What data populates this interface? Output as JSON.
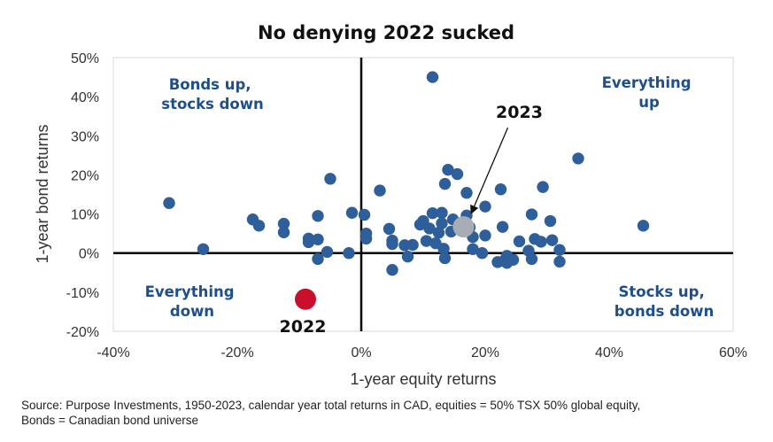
{
  "chart_data": {
    "type": "scatter",
    "title": "No denying 2022 sucked",
    "xlabel": "1-year equity returns",
    "ylabel": "1-year bond returns",
    "xlim": [
      -40,
      60
    ],
    "ylim": [
      -20,
      50
    ],
    "xticks": [
      "-40%",
      "-20%",
      "0%",
      "20%",
      "40%",
      "60%"
    ],
    "yticks": [
      "-20%",
      "-10%",
      "0%",
      "10%",
      "20%",
      "30%",
      "40%",
      "50%"
    ],
    "quadrant_labels": {
      "top_left": [
        "Bonds up,",
        "stocks down"
      ],
      "top_right": [
        "Everything",
        "up"
      ],
      "bottom_left": [
        "Everything",
        "down"
      ],
      "bottom_right": [
        "Stocks up,",
        "bonds down"
      ]
    },
    "colors": {
      "points": "#2e5f9a",
      "highlight_2022": "#c8102e",
      "highlight_2023": "#a6adb4",
      "quadrant_text": "#1f4e8c"
    },
    "series": [
      {
        "points": [
          [
            -31,
            12.8
          ],
          [
            -25.5,
            1
          ],
          [
            -17.5,
            8.6
          ],
          [
            -16.5,
            7
          ],
          [
            -12.5,
            7.5
          ],
          [
            -12.5,
            5.3
          ],
          [
            -8.5,
            3.7
          ],
          [
            -8.5,
            2.8
          ],
          [
            -7,
            3.5
          ],
          [
            -7,
            9.5
          ],
          [
            -7,
            -1.5
          ],
          [
            -5.5,
            0.3
          ],
          [
            -5,
            19
          ],
          [
            -2,
            0
          ],
          [
            -1.5,
            10.3
          ],
          [
            0.5,
            9.8
          ],
          [
            0.8,
            5
          ],
          [
            0.8,
            3.7
          ],
          [
            3,
            16
          ],
          [
            4.5,
            6.2
          ],
          [
            5,
            3.2
          ],
          [
            5,
            2.3
          ],
          [
            5,
            -4.3
          ],
          [
            7,
            2
          ],
          [
            7.5,
            -0.9
          ],
          [
            8.3,
            2.1
          ],
          [
            9.5,
            7.3
          ],
          [
            10,
            8.2
          ],
          [
            10.5,
            3.1
          ],
          [
            11,
            6.3
          ],
          [
            11.5,
            45
          ],
          [
            11.5,
            10.2
          ],
          [
            12,
            2.5
          ],
          [
            12.5,
            5.2
          ],
          [
            13,
            10.3
          ],
          [
            13,
            7.6
          ],
          [
            13.3,
            1.1
          ],
          [
            13.5,
            -1.3
          ],
          [
            13.5,
            17.7
          ],
          [
            14,
            21.3
          ],
          [
            14.5,
            5.5
          ],
          [
            14.8,
            8.6
          ],
          [
            15.5,
            20.2
          ],
          [
            17,
            15.4
          ],
          [
            17,
            9.6
          ],
          [
            17.5,
            6.6
          ],
          [
            18,
            4.1
          ],
          [
            18,
            1
          ],
          [
            19.5,
            0
          ],
          [
            20,
            11.9
          ],
          [
            20,
            4.5
          ],
          [
            22,
            -2.3
          ],
          [
            22.5,
            16.3
          ],
          [
            22.8,
            6.7
          ],
          [
            23,
            -2
          ],
          [
            23.5,
            -0.7
          ],
          [
            23.5,
            -2.5
          ],
          [
            24.5,
            -1.7
          ],
          [
            25.5,
            3
          ],
          [
            27,
            0.6
          ],
          [
            27.5,
            9.9
          ],
          [
            27.5,
            -1.5
          ],
          [
            28,
            3.6
          ],
          [
            29,
            2.9
          ],
          [
            29.3,
            16.9
          ],
          [
            30.5,
            8.2
          ],
          [
            30.8,
            3.3
          ],
          [
            32,
            0.8
          ],
          [
            32,
            -2.2
          ],
          [
            35,
            24.2
          ],
          [
            45.5,
            7
          ]
        ]
      }
    ],
    "highlights": [
      {
        "label": "2022",
        "x": -9,
        "y": -11.8
      },
      {
        "label": "2023",
        "x": 16.5,
        "y": 6.7
      }
    ]
  },
  "source": {
    "line1": "Source: Purpose Investments, 1950-2023, calendar year total returns in CAD, equities = 50% TSX 50% global equity,",
    "line2": "Bonds = Canadian bond universe"
  }
}
